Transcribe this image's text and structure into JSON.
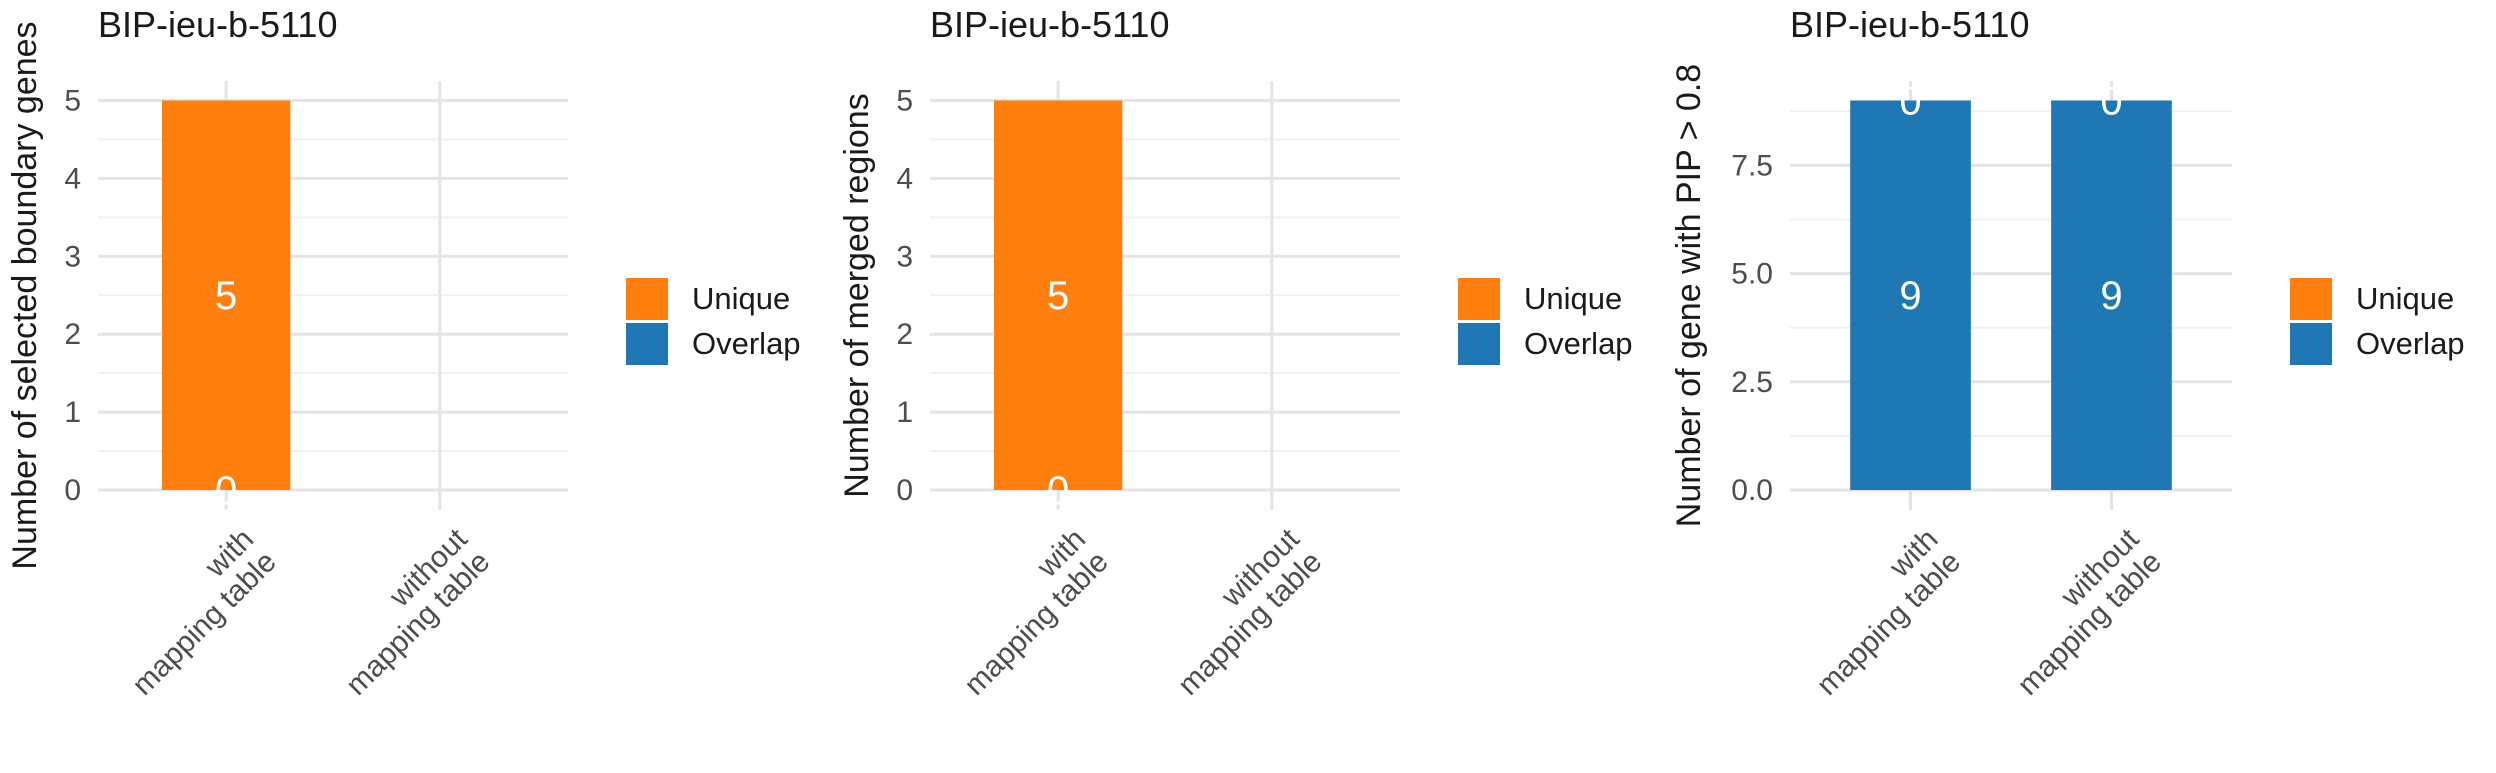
{
  "colors": {
    "background": "#FFFFFF",
    "unique": "#FF7F0E",
    "overlap": "#1F77B4",
    "grid_major": "#E4E4E4",
    "grid_minor": "#F1F1F1",
    "axis_text": "#4D4D4D",
    "text": "#1A1A1A",
    "bar_label": "#FFFFFF"
  },
  "legend": {
    "items": [
      {
        "label": "Unique",
        "color": "#FF7F0E"
      },
      {
        "label": "Overlap",
        "color": "#1F77B4"
      }
    ],
    "position": "right"
  },
  "chart_data": [
    {
      "type": "bar",
      "stacked": true,
      "title": "BIP-ieu-b-5110",
      "ylabel": "Number of selected boundary genes",
      "xlabel": "",
      "categories": [
        "with\nmapping table",
        "without\nmapping table"
      ],
      "series": [
        {
          "name": "Unique",
          "color": "#FF7F0E",
          "values": [
            5,
            0
          ]
        },
        {
          "name": "Overlap",
          "color": "#1F77B4",
          "values": [
            0,
            0
          ]
        }
      ],
      "bar_value_labels": [
        {
          "category_index": 0,
          "text": "5",
          "y": 2.5
        },
        {
          "category_index": 0,
          "text": "0",
          "y": 0
        }
      ],
      "yticks": {
        "values": [
          0,
          1,
          2,
          3,
          4,
          5
        ],
        "labels": [
          "0",
          "1",
          "2",
          "3",
          "4",
          "5"
        ]
      },
      "ylim": [
        0,
        5.25
      ],
      "grid": true,
      "legend_position": "right"
    },
    {
      "type": "bar",
      "stacked": true,
      "title": "BIP-ieu-b-5110",
      "ylabel": "Number of merged regions",
      "xlabel": "",
      "categories": [
        "with\nmapping table",
        "without\nmapping table"
      ],
      "series": [
        {
          "name": "Unique",
          "color": "#FF7F0E",
          "values": [
            5,
            0
          ]
        },
        {
          "name": "Overlap",
          "color": "#1F77B4",
          "values": [
            0,
            0
          ]
        }
      ],
      "bar_value_labels": [
        {
          "category_index": 0,
          "text": "5",
          "y": 2.5
        },
        {
          "category_index": 0,
          "text": "0",
          "y": 0
        }
      ],
      "yticks": {
        "values": [
          0,
          1,
          2,
          3,
          4,
          5
        ],
        "labels": [
          "0",
          "1",
          "2",
          "3",
          "4",
          "5"
        ]
      },
      "ylim": [
        0,
        5.25
      ],
      "grid": true,
      "legend_position": "right"
    },
    {
      "type": "bar",
      "stacked": true,
      "title": "BIP-ieu-b-5110",
      "ylabel": "Number of gene with PIP > 0.8",
      "xlabel": "",
      "categories": [
        "with\nmapping table",
        "without\nmapping table"
      ],
      "series": [
        {
          "name": "Unique",
          "color": "#FF7F0E",
          "values": [
            0,
            0
          ]
        },
        {
          "name": "Overlap",
          "color": "#1F77B4",
          "values": [
            9,
            9
          ]
        }
      ],
      "bar_value_labels": [
        {
          "category_index": 0,
          "text": "9",
          "y": 4.5
        },
        {
          "category_index": 0,
          "text": "0",
          "y": 9
        },
        {
          "category_index": 1,
          "text": "9",
          "y": 4.5
        },
        {
          "category_index": 1,
          "text": "0",
          "y": 9
        }
      ],
      "yticks": {
        "values": [
          0,
          2.5,
          5,
          7.5
        ],
        "labels": [
          "0.0",
          "2.5",
          "5.0",
          "7.5"
        ]
      },
      "ylim": [
        0,
        9.45
      ],
      "grid": true,
      "legend_position": "right"
    }
  ]
}
